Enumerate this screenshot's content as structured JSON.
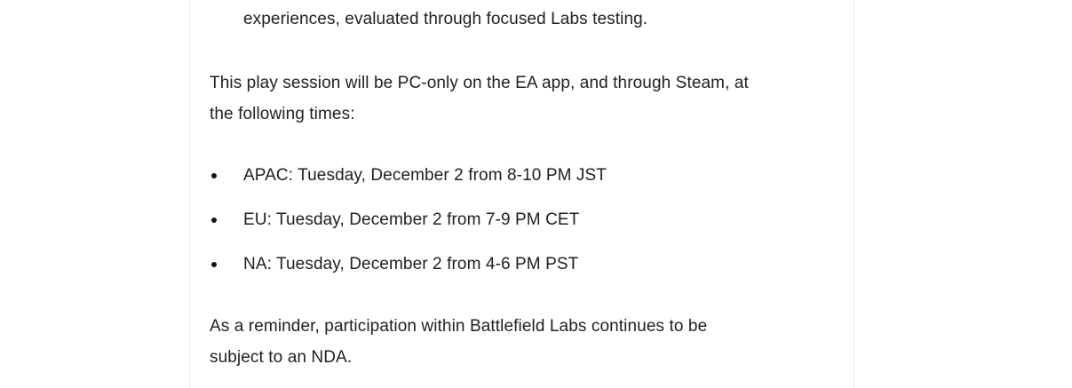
{
  "page": {
    "background_color": "#ffffff",
    "column_border_color": "#ececec",
    "text_color": "#1f1f1f"
  },
  "article": {
    "clipped_line": "experiences, evaluated through focused Labs testing.",
    "intro": {
      "line1": "This play session will be PC-only on the EA app, and through Steam, at",
      "line2": "the following times:"
    },
    "schedule": [
      "APAC: Tuesday, December 2 from 8-10 PM JST",
      "EU: Tuesday, December 2 from 7-9 PM CET",
      "NA: Tuesday, December 2 from 4-6 PM PST"
    ],
    "nda": {
      "line1": "As a reminder, participation within Battlefield Labs continues to be",
      "line2": "subject to an NDA."
    }
  }
}
